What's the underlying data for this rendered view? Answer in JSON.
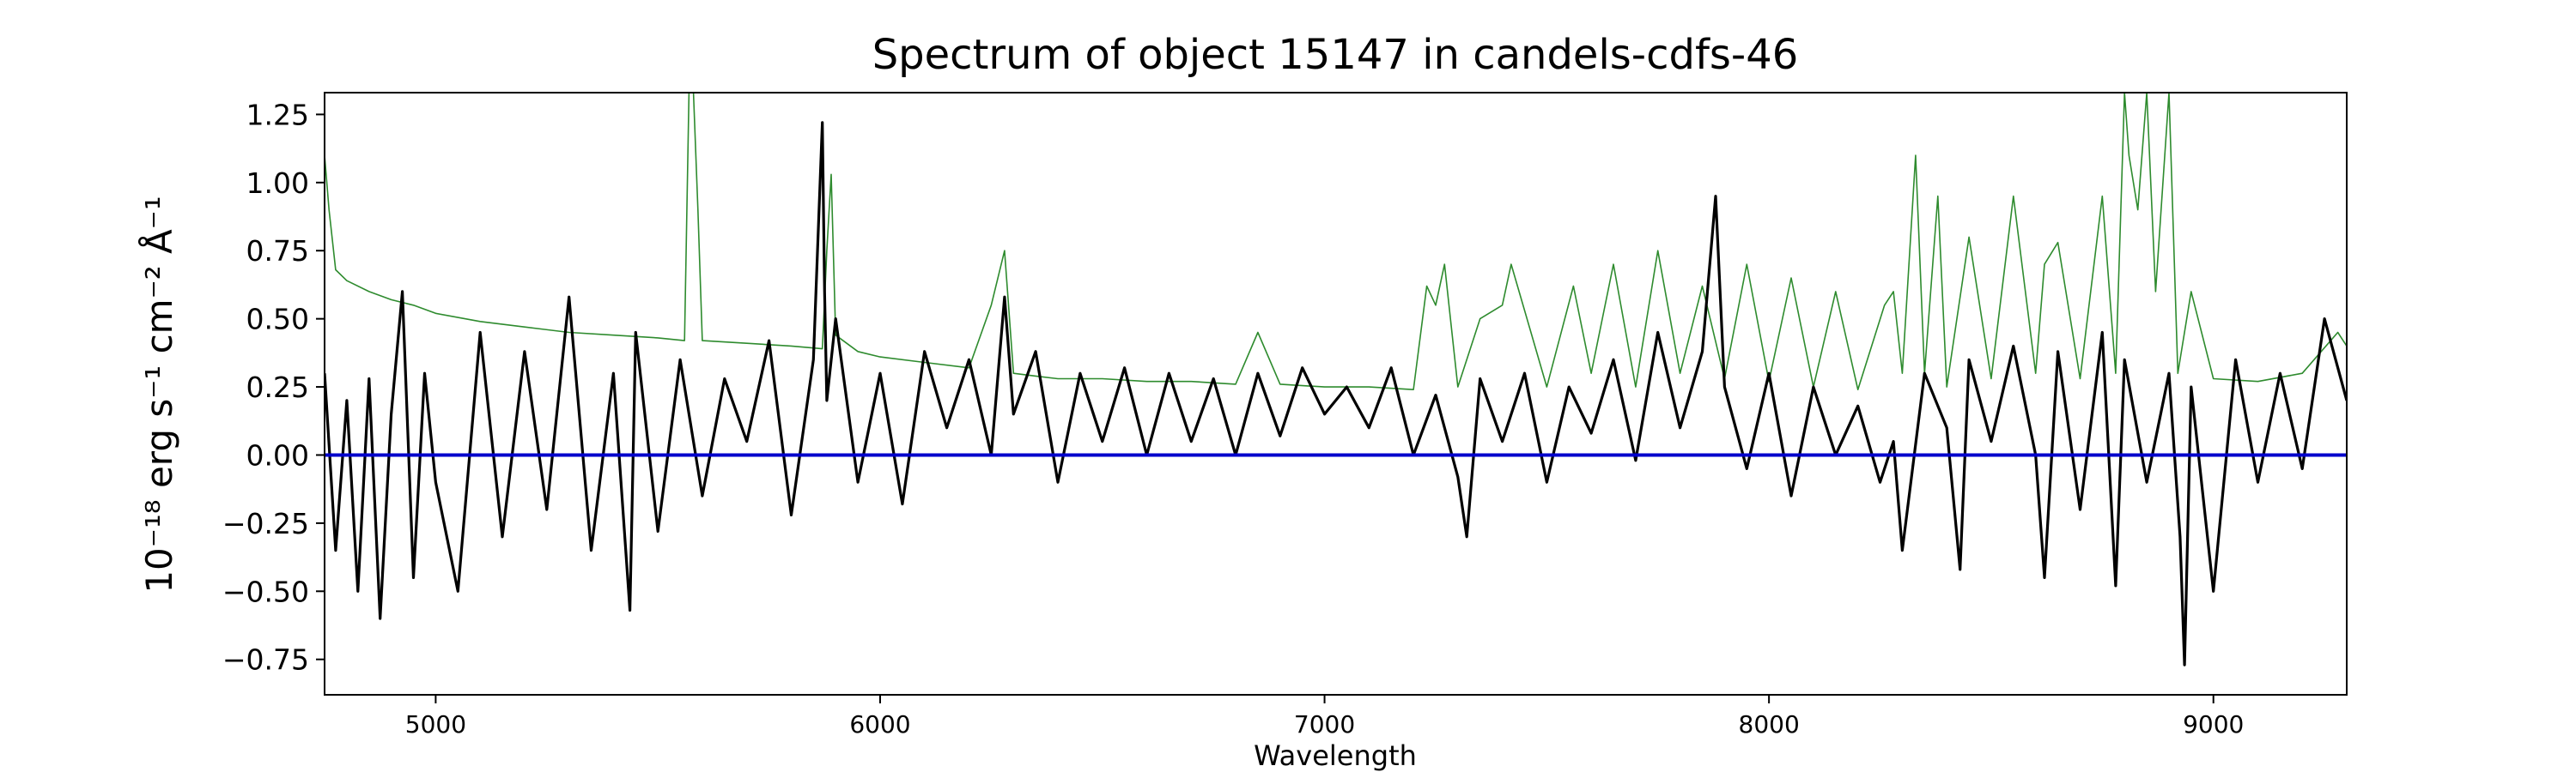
{
  "chart_data": {
    "type": "line",
    "title": "Spectrum of object 15147 in candels-cdfs-46",
    "xlabel": "Wavelength",
    "ylabel": "10⁻¹⁸ erg s⁻¹ cm⁻² Å⁻¹",
    "xlim": [
      4750,
      9300
    ],
    "ylim": [
      -0.88,
      1.33
    ],
    "x_ticks": [
      5000,
      6000,
      7000,
      8000,
      9000
    ],
    "y_ticks": [
      -0.75,
      -0.5,
      -0.25,
      0.0,
      0.25,
      0.5,
      0.75,
      1.0,
      1.25
    ],
    "y_tick_labels": [
      "−0.75",
      "−0.50",
      "−0.25",
      "0.00",
      "0.25",
      "0.50",
      "0.75",
      "1.00",
      "1.25"
    ],
    "grid": false,
    "legend": "none",
    "series": [
      {
        "role": "flux",
        "color": "#000000",
        "x": [
          4750,
          4775,
          4800,
          4825,
          4850,
          4875,
          4900,
          4925,
          4950,
          4975,
          5000,
          5050,
          5100,
          5150,
          5200,
          5250,
          5300,
          5350,
          5400,
          5437,
          5450,
          5500,
          5550,
          5600,
          5650,
          5700,
          5750,
          5800,
          5850,
          5870,
          5875,
          5880,
          5900,
          5950,
          6000,
          6050,
          6100,
          6150,
          6200,
          6250,
          6280,
          6300,
          6350,
          6400,
          6450,
          6500,
          6550,
          6600,
          6650,
          6700,
          6750,
          6800,
          6850,
          6900,
          6950,
          7000,
          7050,
          7100,
          7150,
          7200,
          7250,
          7300,
          7320,
          7350,
          7400,
          7450,
          7500,
          7550,
          7600,
          7650,
          7700,
          7750,
          7800,
          7850,
          7880,
          7900,
          7950,
          8000,
          8050,
          8100,
          8150,
          8200,
          8250,
          8280,
          8300,
          8350,
          8400,
          8430,
          8450,
          8500,
          8550,
          8600,
          8620,
          8650,
          8700,
          8750,
          8780,
          8800,
          8850,
          8900,
          8925,
          8935,
          8950,
          9000,
          9050,
          9100,
          9150,
          9200,
          9250,
          9300
        ],
        "y": [
          0.3,
          -0.35,
          0.2,
          -0.5,
          0.28,
          -0.6,
          0.15,
          0.6,
          -0.45,
          0.3,
          -0.1,
          -0.5,
          0.45,
          -0.3,
          0.38,
          -0.2,
          0.58,
          -0.35,
          0.3,
          -0.57,
          0.45,
          -0.28,
          0.35,
          -0.15,
          0.28,
          0.05,
          0.42,
          -0.22,
          0.35,
          1.22,
          0.6,
          0.2,
          0.5,
          -0.1,
          0.3,
          -0.18,
          0.38,
          0.1,
          0.35,
          0.0,
          0.58,
          0.15,
          0.38,
          -0.1,
          0.3,
          0.05,
          0.32,
          0.0,
          0.3,
          0.05,
          0.28,
          0.0,
          0.3,
          0.07,
          0.32,
          0.15,
          0.25,
          0.1,
          0.32,
          0.0,
          0.22,
          -0.08,
          -0.3,
          0.28,
          0.05,
          0.3,
          -0.1,
          0.25,
          0.08,
          0.35,
          -0.02,
          0.45,
          0.1,
          0.38,
          0.95,
          0.25,
          -0.05,
          0.3,
          -0.15,
          0.25,
          0.0,
          0.18,
          -0.1,
          0.05,
          -0.35,
          0.3,
          0.1,
          -0.42,
          0.35,
          0.05,
          0.4,
          0.0,
          -0.45,
          0.38,
          -0.2,
          0.45,
          -0.48,
          0.35,
          -0.1,
          0.3,
          -0.3,
          -0.77,
          0.25,
          -0.5,
          0.35,
          -0.1,
          0.3,
          -0.05,
          0.5,
          0.2
        ]
      },
      {
        "role": "error",
        "color": "#2e8b2e",
        "x": [
          4750,
          4760,
          4775,
          4800,
          4850,
          4900,
          4950,
          5000,
          5100,
          5200,
          5300,
          5400,
          5500,
          5560,
          5570,
          5580,
          5590,
          5600,
          5700,
          5800,
          5870,
          5880,
          5890,
          5900,
          5950,
          6000,
          6100,
          6200,
          6250,
          6280,
          6300,
          6350,
          6400,
          6500,
          6600,
          6700,
          6800,
          6850,
          6900,
          7000,
          7100,
          7200,
          7230,
          7250,
          7270,
          7300,
          7350,
          7400,
          7420,
          7500,
          7560,
          7600,
          7650,
          7700,
          7750,
          7800,
          7850,
          7900,
          7950,
          8000,
          8050,
          8100,
          8150,
          8200,
          8260,
          8280,
          8300,
          8330,
          8350,
          8380,
          8400,
          8450,
          8500,
          8550,
          8600,
          8620,
          8650,
          8700,
          8750,
          8780,
          8800,
          8810,
          8830,
          8850,
          8870,
          8900,
          8920,
          8950,
          9000,
          9100,
          9200,
          9280,
          9300
        ],
        "y": [
          1.1,
          0.9,
          0.68,
          0.64,
          0.6,
          0.57,
          0.55,
          0.52,
          0.49,
          0.47,
          0.45,
          0.44,
          0.43,
          0.42,
          1.33,
          1.33,
          0.9,
          0.42,
          0.41,
          0.4,
          0.39,
          0.75,
          1.03,
          0.44,
          0.38,
          0.36,
          0.34,
          0.32,
          0.55,
          0.75,
          0.3,
          0.29,
          0.28,
          0.28,
          0.27,
          0.27,
          0.26,
          0.45,
          0.26,
          0.25,
          0.25,
          0.24,
          0.62,
          0.55,
          0.7,
          0.25,
          0.5,
          0.55,
          0.7,
          0.25,
          0.62,
          0.3,
          0.7,
          0.25,
          0.75,
          0.3,
          0.62,
          0.28,
          0.7,
          0.27,
          0.65,
          0.25,
          0.6,
          0.24,
          0.55,
          0.6,
          0.3,
          1.1,
          0.3,
          0.95,
          0.25,
          0.8,
          0.28,
          0.95,
          0.3,
          0.7,
          0.78,
          0.28,
          0.95,
          0.3,
          1.33,
          1.1,
          0.9,
          1.33,
          0.6,
          1.33,
          0.3,
          0.6,
          0.28,
          0.27,
          0.3,
          0.45,
          0.4
        ]
      },
      {
        "role": "zero-line",
        "color": "#0000cc",
        "x": [
          4750,
          9300
        ],
        "y": [
          0,
          0
        ]
      }
    ]
  }
}
